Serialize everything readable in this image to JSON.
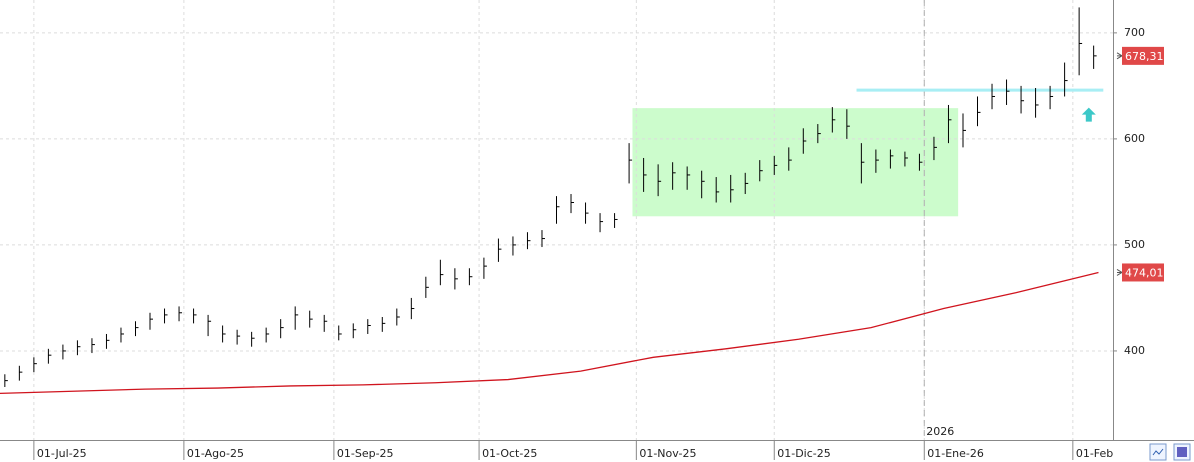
{
  "chart_data": {
    "type": "ohlc",
    "x": [
      1,
      4,
      7,
      10,
      13,
      16,
      19,
      22,
      25,
      28,
      31,
      34,
      37,
      40,
      43,
      46,
      49,
      52,
      55,
      58,
      61,
      64,
      67,
      70,
      73,
      76,
      79,
      82,
      85,
      88,
      91,
      94,
      97,
      100,
      103,
      106,
      109,
      112,
      115,
      118,
      121,
      124,
      127,
      130,
      133,
      136,
      139,
      142,
      145,
      148,
      151,
      154,
      157,
      160,
      163,
      166,
      169,
      172,
      175,
      178,
      181,
      184,
      187,
      190,
      193,
      196,
      199,
      202,
      205,
      208,
      211,
      214,
      217,
      220,
      223,
      226
    ],
    "series": [
      {
        "color": "#000000",
        "high": [
          378,
          386,
          394,
          402,
          406,
          410,
          412,
          416,
          422,
          428,
          436,
          440,
          442,
          440,
          434,
          424,
          420,
          418,
          422,
          430,
          442,
          438,
          434,
          424,
          426,
          430,
          432,
          440,
          450,
          470,
          486,
          478,
          478,
          488,
          506,
          508,
          512,
          514,
          546,
          548,
          540,
          530,
          530,
          596,
          582,
          576,
          578,
          574,
          570,
          564,
          566,
          568,
          580,
          584,
          592,
          610,
          614,
          630,
          628,
          596,
          590,
          590,
          588,
          586,
          602,
          632,
          624,
          640,
          652,
          656,
          650,
          648,
          650,
          672,
          724,
          688
        ],
        "low": [
          366,
          372,
          380,
          388,
          392,
          396,
          398,
          402,
          408,
          414,
          420,
          426,
          428,
          426,
          414,
          408,
          406,
          404,
          408,
          412,
          420,
          422,
          418,
          410,
          412,
          416,
          418,
          424,
          430,
          450,
          462,
          458,
          462,
          468,
          484,
          490,
          496,
          498,
          520,
          530,
          520,
          512,
          516,
          558,
          550,
          546,
          552,
          552,
          544,
          540,
          540,
          548,
          560,
          566,
          570,
          586,
          596,
          606,
          600,
          558,
          568,
          572,
          574,
          570,
          580,
          596,
          592,
          612,
          628,
          632,
          624,
          620,
          628,
          640,
          660,
          666
        ],
        "values": [
          372,
          380,
          388,
          396,
          400,
          404,
          406,
          410,
          416,
          422,
          430,
          434,
          436,
          434,
          428,
          416,
          414,
          412,
          416,
          422,
          434,
          430,
          428,
          416,
          420,
          424,
          426,
          432,
          440,
          460,
          472,
          468,
          470,
          480,
          496,
          500,
          504,
          506,
          536,
          540,
          530,
          522,
          524,
          580,
          566,
          560,
          568,
          566,
          560,
          550,
          552,
          558,
          570,
          575,
          580,
          598,
          605,
          618,
          612,
          578,
          580,
          584,
          582,
          578,
          592,
          618,
          608,
          625,
          640,
          645,
          636,
          632,
          640,
          655,
          690,
          678.31
        ]
      }
    ],
    "moving_average": {
      "color": "#d0141e",
      "x": [
        0,
        15,
        30,
        45,
        60,
        75,
        90,
        105,
        120,
        135,
        150,
        165,
        180,
        195,
        210,
        227
      ],
      "values": [
        360,
        362,
        364,
        365,
        367,
        368,
        370,
        373,
        381,
        394,
        402,
        411,
        422,
        440,
        455,
        474.01
      ]
    },
    "price_labels": [
      {
        "value": 678.31,
        "label": "678,31"
      },
      {
        "value": 474.01,
        "label": "474,01"
      }
    ],
    "price_label_color": "#e04848",
    "zone": {
      "color": "#ccfccc",
      "x": [
        130.7,
        198
      ],
      "y": [
        527,
        629
      ]
    },
    "level_line": {
      "color": "#a8eef4",
      "x": [
        177,
        228
      ],
      "value": 646
    },
    "arrow": {
      "color": "#3cc8c8",
      "x": 225,
      "value": 622
    },
    "year_marker": {
      "value": 191,
      "label": "2026"
    },
    "xlim": [
      0,
      230
    ],
    "xticks": [
      {
        "value": 7,
        "label": "01-Jul-25"
      },
      {
        "value": 38,
        "label": "01-Ago-25"
      },
      {
        "value": 69,
        "label": "01-Sep-25"
      },
      {
        "value": 99,
        "label": "01-Oct-25"
      },
      {
        "value": 131.5,
        "label": "01-Nov-25"
      },
      {
        "value": 160,
        "label": "01-Dic-25"
      },
      {
        "value": 191,
        "label": "01-Ene-26"
      },
      {
        "value": 221.7,
        "label": "01-Feb"
      }
    ],
    "ylim": [
      316,
      731
    ],
    "yticks": [
      400,
      500,
      600,
      700
    ],
    "grid": true
  }
}
